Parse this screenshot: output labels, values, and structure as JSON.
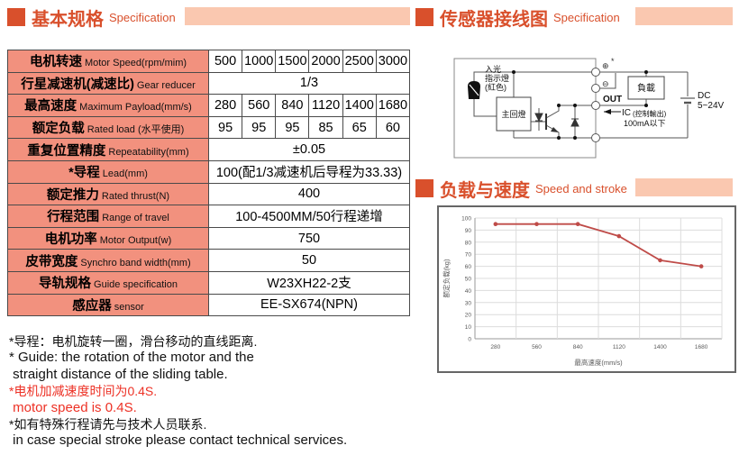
{
  "colors": {
    "accent": "#d9502c",
    "accent_bar": "#fac8b0",
    "table_label_bg": "#f2917e",
    "table_border": "#4a4a4a",
    "note_red": "#ed3125",
    "chart_line": "#bf4b48",
    "chart_grid": "#dcdcdc",
    "chart_text": "#595959"
  },
  "sections": {
    "spec": {
      "title_zh": "基本规格",
      "title_en": "Specification"
    },
    "sensor": {
      "title_zh": "传感器接线图",
      "title_en": "Specification"
    },
    "load": {
      "title_zh": "负载与速度",
      "title_en": "Speed and stroke"
    }
  },
  "spec_table": {
    "rows": [
      {
        "label_zh": "电机转速",
        "label_en": "Motor Speed(rpm/mim)",
        "cells": [
          "500",
          "1000",
          "1500",
          "2000",
          "2500",
          "3000"
        ]
      },
      {
        "label_zh": "行星减速机(减速比)",
        "label_en": "Gear reducer",
        "span": "1/3"
      },
      {
        "label_zh": "最高速度",
        "label_en": "Maximum  Payload(mm/s)",
        "cells": [
          "280",
          "560",
          "840",
          "1120",
          "1400",
          "1680"
        ]
      },
      {
        "label_zh": "额定负载",
        "label_en": "Rated load (水平使用)",
        "cells": [
          "95",
          "95",
          "95",
          "85",
          "65",
          "60"
        ]
      },
      {
        "label_zh": "重复位置精度",
        "label_en": "Repeatability(mm)",
        "span": "±0.05"
      },
      {
        "label_zh": "*导程",
        "label_en": "Lead(mm)",
        "span": "100(配1/3减速机后导程为33.33)"
      },
      {
        "label_zh": "额定推力",
        "label_en": "Rated thrust(N)",
        "span": "400"
      },
      {
        "label_zh": "行程范围",
        "label_en": "Range of travel",
        "span": "100-4500MM/50行程递增"
      },
      {
        "label_zh": "电机功率",
        "label_en": "Motor Output(w)",
        "span": "750"
      },
      {
        "label_zh": "皮带宽度",
        "label_en": "Synchro band width(mm)",
        "span": "50"
      },
      {
        "label_zh": "导轨规格",
        "label_en": "Guide specification",
        "span": "W23XH22-2支"
      },
      {
        "label_zh": "感应器",
        "label_en": "sensor",
        "span": "EE-SX674(NPN)"
      }
    ]
  },
  "footnotes": [
    {
      "text": "*导程：电机旋转一圈，滑台移动的直线距离.",
      "lang": "zh",
      "color": "black"
    },
    {
      "text": "* Guide: the rotation of the motor and the",
      "lang": "en",
      "color": "black"
    },
    {
      "text": " straight distance of the sliding table.",
      "lang": "en",
      "color": "black"
    },
    {
      "text": "*电机加减速度时间为0.4S.",
      "lang": "zh",
      "color": "red"
    },
    {
      "text": " motor speed is 0.4S.",
      "lang": "en",
      "color": "red"
    },
    {
      "text": "*如有特殊行程请先与技术人员联系.",
      "lang": "zh",
      "color": "black"
    },
    {
      "text": " in case special stroke please contact technical services.",
      "lang": "en",
      "color": "black"
    }
  ],
  "wiring": {
    "led_label": [
      "入光",
      "指示燈",
      "(紅色)"
    ],
    "main_box": "主回燈",
    "load_box": "負載",
    "terminal_plus": "⊕",
    "terminal_star": "*",
    "terminal_minus": "⊖",
    "out_label": "OUT",
    "ic_label": "IC",
    "control_output": "(控制輸出)",
    "current_limit": "100mA以下",
    "dc_label": "DC",
    "dc_voltage": "5~24V"
  },
  "chart_data": {
    "type": "line",
    "x": [
      280,
      560,
      840,
      1120,
      1400,
      1680
    ],
    "series": [
      {
        "name": "额定负载",
        "values": [
          95,
          95,
          95,
          85,
          65,
          60
        ]
      }
    ],
    "xlabel": "最高速度(mm/s)",
    "ylabel": "额定负载(kg)",
    "ylim": [
      0,
      100
    ],
    "yticks": [
      0,
      10,
      20,
      30,
      40,
      50,
      60,
      70,
      80,
      90,
      100
    ],
    "grid": true,
    "legend": false,
    "line_color": "#bf4b48"
  }
}
